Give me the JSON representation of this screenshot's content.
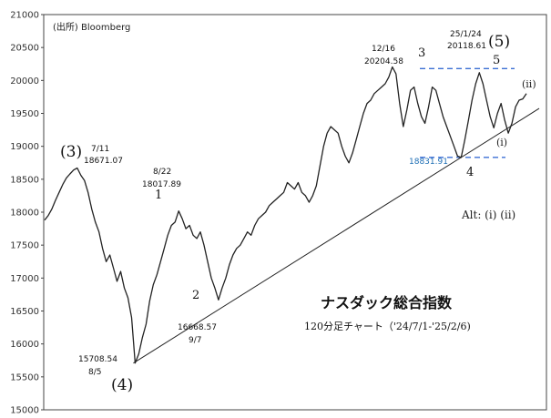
{
  "chart_data": {
    "type": "line",
    "title": "ナスダック総合指数",
    "subtitle": "120分足チャート（'24/7/1-'25/2/6)",
    "source": "(出所) Bloomberg",
    "ylim": [
      15000,
      21000
    ],
    "yticks": [
      "15000",
      "15500",
      "16000",
      "16500",
      "17000",
      "17500",
      "18000",
      "18500",
      "19000",
      "19500",
      "20000",
      "20500",
      "21000"
    ],
    "grid": false,
    "series": [
      {
        "values": [
          17880,
          17950,
          18050,
          18180,
          18300,
          18420,
          18520,
          18580,
          18640,
          18671,
          18560,
          18480,
          18300,
          18050,
          17850,
          17700,
          17450,
          17250,
          17350,
          17150,
          16950,
          17100,
          16850,
          16700,
          16400,
          15709,
          15850,
          16100,
          16300,
          16650,
          16900,
          17050,
          17250,
          17450,
          17650,
          17800,
          17850,
          18018,
          17900,
          17750,
          17800,
          17650,
          17600,
          17700,
          17500,
          17250,
          17000,
          16850,
          16669,
          16850,
          17000,
          17200,
          17350,
          17450,
          17500,
          17600,
          17700,
          17650,
          17800,
          17900,
          17950,
          18000,
          18100,
          18150,
          18200,
          18250,
          18300,
          18450,
          18400,
          18350,
          18450,
          18300,
          18250,
          18150,
          18250,
          18400,
          18700,
          19000,
          19200,
          19300,
          19250,
          19200,
          19000,
          18850,
          18750,
          18900,
          19100,
          19300,
          19500,
          19650,
          19700,
          19800,
          19850,
          19900,
          19950,
          20050,
          20204.58,
          20100,
          19650,
          19300,
          19550,
          19850,
          19900,
          19650,
          19450,
          19350,
          19600,
          19900,
          19850,
          19650,
          19450,
          19300,
          19150,
          19000,
          18850,
          18832,
          19100,
          19400,
          19700,
          19950,
          20118.61,
          19950,
          19700,
          19450,
          19280,
          19500,
          19650,
          19400,
          19200,
          19350,
          19600,
          19700,
          19720,
          19800
        ]
      },
      {
        "values": [
          15709,
          16669,
          18832
        ]
      }
    ],
    "reference_lines": [
      {
        "value": 20180,
        "color": "#3b6fd4",
        "style": "dashed"
      },
      {
        "value": 18832,
        "color": "#3b6fd4",
        "style": "dashed"
      }
    ],
    "annotations": {
      "p3_date": "7/11",
      "p3_value": "18671.07",
      "p3_wave": "(3)",
      "p822_date": "8/22",
      "p822_value": "18017.89",
      "p822_wave": "1",
      "p4_value": "15708.54",
      "p4_date": "8/5",
      "p4_wave": "(4)",
      "p2_wave": "2",
      "p2_value": "16668.57",
      "p2_date": "9/7",
      "w3_date": "12/16",
      "w3_value": "20204.58",
      "w3_wave": "3",
      "w5_date": "25/1/24",
      "w5_value": "20118.61",
      "w5_big": "(5)",
      "w5_small": "5",
      "w4_value": "18831.91",
      "w4_wave": "4",
      "wi": "(i)",
      "wii": "(ii)",
      "alt": "Alt: (i)  (ii)"
    }
  }
}
